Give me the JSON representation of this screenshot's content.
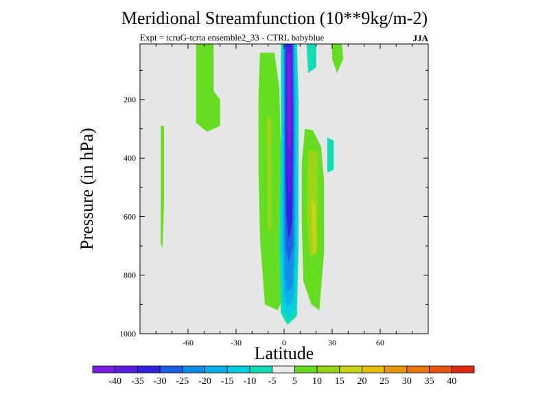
{
  "chart_data": {
    "type": "contour",
    "title": "Meridional Streamfunction (10**9kg/m-2)",
    "subtitle": "Expt = tcruG-tcrta ensemble2_33 - CTRL babyblue",
    "season": "JJA",
    "xlabel": "Latitude",
    "ylabel": "Pressure (in hPa)",
    "xlim": [
      -90,
      90
    ],
    "ylim": [
      1000,
      10
    ],
    "y_inverted": true,
    "grid": false,
    "background_color": "#e6e6e6",
    "x_ticks": [
      -60,
      -30,
      0,
      30,
      60
    ],
    "x_tick_labels": [
      "-60",
      "-30",
      "0",
      "30",
      "60"
    ],
    "y_ticks": [
      200,
      400,
      600,
      800,
      1000
    ],
    "y_tick_labels": [
      "200",
      "400",
      "600",
      "800",
      "1000"
    ],
    "contour_levels": [
      -40,
      -35,
      -30,
      -25,
      -20,
      -15,
      -10,
      -5,
      5,
      10,
      15,
      20,
      25,
      30,
      35,
      40
    ],
    "colorbar": {
      "labels": [
        "-40",
        "-35",
        "-30",
        "-25",
        "-20",
        "-15",
        "-10",
        "-5",
        "5",
        "10",
        "15",
        "20",
        "25",
        "30",
        "35",
        "40"
      ],
      "colors": [
        "#7a1fe0",
        "#5a1ee0",
        "#3322dd",
        "#1e5fe6",
        "#138de8",
        "#0bb0e6",
        "#0acde0",
        "#12dcb4",
        "#ebebeb",
        "#66dd22",
        "#99d619",
        "#c8d414",
        "#e6c010",
        "#e69a10",
        "#e67810",
        "#e65512",
        "#dd2a10"
      ]
    },
    "features": [
      {
        "name": "equatorial negative cell",
        "lat_range": [
          0,
          8
        ],
        "p_range": [
          10,
          970
        ],
        "min_value": -40
      },
      {
        "name": "southern positive lobe",
        "lat_range": [
          -15,
          -2
        ],
        "p_range": [
          40,
          920
        ],
        "max_value": 15
      },
      {
        "name": "northern positive lobe",
        "lat_range": [
          11,
          25
        ],
        "p_range": [
          300,
          920
        ],
        "max_value": 15
      },
      {
        "name": "southern subtropical positive branch",
        "lat_range": [
          -55,
          -40
        ],
        "p_range": [
          10,
          310
        ],
        "max_value": 5
      },
      {
        "name": "southern high-latitude positive branch",
        "lat_range": [
          -77,
          -74
        ],
        "p_range": [
          290,
          710
        ],
        "max_value": 5
      }
    ]
  }
}
